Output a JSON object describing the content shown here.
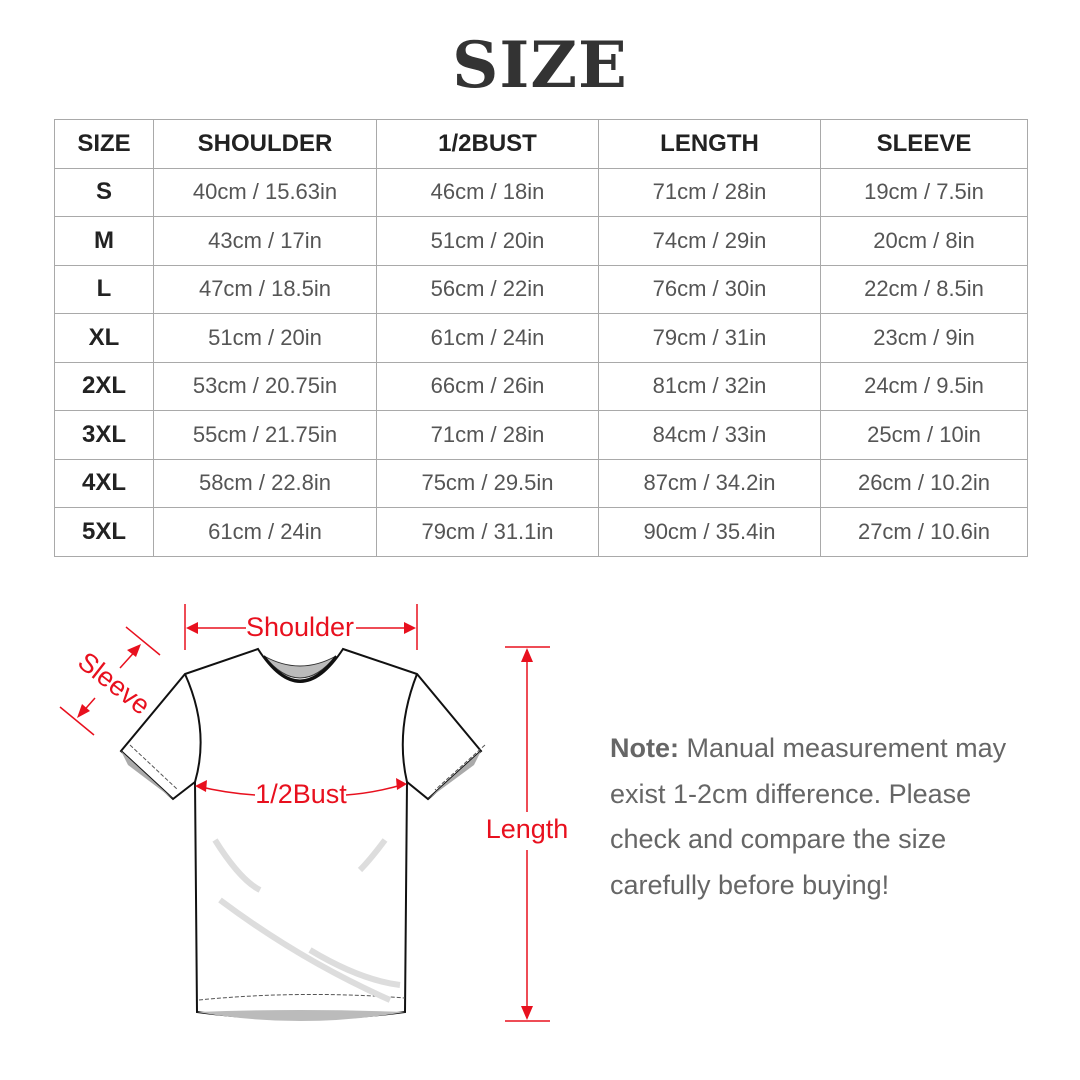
{
  "title": "SIZE",
  "table": {
    "headers": [
      "SIZE",
      "SHOULDER",
      "1/2BUST",
      "LENGTH",
      "SLEEVE"
    ],
    "rows": [
      [
        "S",
        "40cm / 15.63in",
        "46cm / 18in",
        "71cm / 28in",
        "19cm / 7.5in"
      ],
      [
        "M",
        "43cm / 17in",
        "51cm / 20in",
        "74cm / 29in",
        "20cm / 8in"
      ],
      [
        "L",
        "47cm / 18.5in",
        "56cm / 22in",
        "76cm / 30in",
        "22cm / 8.5in"
      ],
      [
        "XL",
        "51cm / 20in",
        "61cm / 24in",
        "79cm / 31in",
        "23cm / 9in"
      ],
      [
        "2XL",
        "53cm / 20.75in",
        "66cm / 26in",
        "81cm / 32in",
        "24cm / 9.5in"
      ],
      [
        "3XL",
        "55cm / 21.75in",
        "71cm / 28in",
        "84cm / 33in",
        "25cm / 10in"
      ],
      [
        "4XL",
        "58cm / 22.8in",
        "75cm / 29.5in",
        "87cm / 34.2in",
        "26cm / 10.2in"
      ],
      [
        "5XL",
        "61cm / 24in",
        "79cm / 31.1in",
        "90cm / 35.4in",
        "27cm / 10.6in"
      ]
    ]
  },
  "diagram": {
    "shoulder_label": "Shoulder",
    "sleeve_label": "Sleeve",
    "bust_label": "1/2Bust",
    "length_label": "Length",
    "annotation_color": "#e8101e"
  },
  "note": {
    "label": "Note:",
    "text": " Manual measurement may exist 1-2cm difference. Please check and compare the size carefully before buying!"
  }
}
